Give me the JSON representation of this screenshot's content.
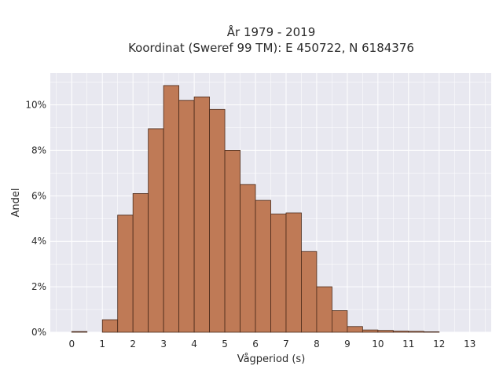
{
  "chart_data": {
    "type": "bar",
    "title_line1": "År 1979 - 2019",
    "title_line2": "Koordinat (Sweref 99 TM): E 450722, N 6184376",
    "xlabel": "Vågperiod (s)",
    "ylabel": "Andel",
    "bin_width": 0.5,
    "bin_starts": [
      0,
      0.5,
      1,
      1.5,
      2,
      2.5,
      3,
      3.5,
      4,
      4.5,
      5,
      5.5,
      6,
      6.5,
      7,
      7.5,
      8,
      8.5,
      9,
      9.5,
      10,
      10.5,
      11,
      11.5,
      12,
      12.5
    ],
    "values": [
      0.03,
      0.0,
      0.55,
      5.15,
      6.1,
      8.95,
      10.85,
      10.2,
      10.35,
      9.8,
      8.0,
      6.5,
      5.8,
      5.2,
      5.25,
      3.55,
      2.0,
      0.95,
      0.25,
      0.1,
      0.08,
      0.05,
      0.04,
      0.02,
      0.0,
      0.0
    ],
    "xticks": [
      0,
      1,
      2,
      3,
      4,
      5,
      6,
      7,
      8,
      9,
      10,
      11,
      12,
      13
    ],
    "xtick_labels": [
      "0",
      "1",
      "2",
      "3",
      "4",
      "5",
      "6",
      "7",
      "8",
      "9",
      "10",
      "11",
      "12",
      "13"
    ],
    "yticks": [
      0,
      2,
      4,
      6,
      8,
      10
    ],
    "ytick_labels": [
      "0%",
      "2%",
      "4%",
      "6%",
      "8%",
      "10%"
    ],
    "xlim": [
      -0.7,
      13.7
    ],
    "ylim": [
      0,
      11.4
    ],
    "grid": true,
    "colors": {
      "bar_fill": "#bf7a56",
      "bar_edge": "#4a2a1a",
      "plot_bg": "#e8e8f0",
      "grid": "#ffffff"
    }
  }
}
